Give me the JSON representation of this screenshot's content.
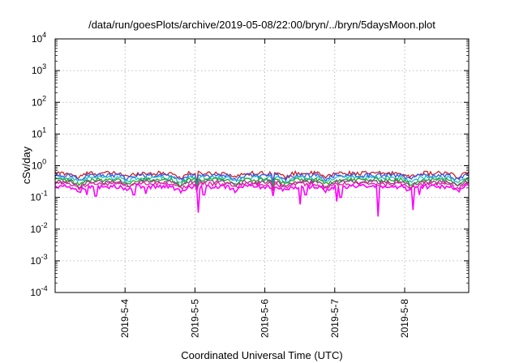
{
  "chart_data": {
    "type": "line",
    "title": "/data/run/goesPlots/archive/2019-05-08/22:00/bryn/../bryn/5daysMoon.plot",
    "xlabel": "Coordinated Universal Time (UTC)",
    "ylabel": "cSv/day",
    "y_scale": "log",
    "ylim": [
      0.0001,
      10000
    ],
    "y_ticks": [
      {
        "base": "10",
        "exp": "-4"
      },
      {
        "base": "10",
        "exp": "-3"
      },
      {
        "base": "10",
        "exp": "-2"
      },
      {
        "base": "10",
        "exp": "-1"
      },
      {
        "base": "10",
        "exp": "0"
      },
      {
        "base": "10",
        "exp": "1"
      },
      {
        "base": "10",
        "exp": "2"
      },
      {
        "base": "10",
        "exp": "3"
      },
      {
        "base": "10",
        "exp": "4"
      }
    ],
    "xlim": [
      "2019-05-03 00:00",
      "2019-05-08 22:00"
    ],
    "x_ticks": [
      "2019-5-4",
      "2019-5-5",
      "2019-5-6",
      "2019-5-7",
      "2019-5-8"
    ],
    "grid": true,
    "legend": "none",
    "series": [
      {
        "color": "#cc2222",
        "base": 0.58,
        "spikes": [
          [
            "2019-05-05 00:30",
            0.3
          ],
          [
            "2019-05-06 03:00",
            0.32
          ]
        ]
      },
      {
        "color": "#3355ee",
        "base": 0.5,
        "spikes": [
          [
            "2019-05-05 00:30",
            0.26
          ],
          [
            "2019-05-06 03:00",
            0.28
          ]
        ]
      },
      {
        "color": "#22bbcc",
        "base": 0.42,
        "spikes": [
          [
            "2019-05-05 00:30",
            0.22
          ],
          [
            "2019-05-06 03:00",
            0.24
          ]
        ]
      },
      {
        "color": "#22aa22",
        "base": 0.36,
        "spikes": [
          [
            "2019-05-05 00:30",
            0.2
          ],
          [
            "2019-05-06 03:00",
            0.21
          ]
        ]
      },
      {
        "color": "#884488",
        "base": 0.31,
        "spikes": [
          [
            "2019-05-05 00:30",
            0.18
          ],
          [
            "2019-05-06 03:00",
            0.19
          ]
        ]
      },
      {
        "color": "#dd2299",
        "base": 0.27,
        "spikes": [
          [
            "2019-05-05 00:30",
            0.15
          ],
          [
            "2019-05-06 03:00",
            0.16
          ]
        ]
      },
      {
        "color": "#ff00ff",
        "base": 0.22,
        "spikes": [
          [
            "2019-05-03 11:00",
            0.12
          ],
          [
            "2019-05-03 14:00",
            0.11
          ],
          [
            "2019-05-04 03:00",
            0.12
          ],
          [
            "2019-05-04 07:00",
            0.13
          ],
          [
            "2019-05-05 01:00",
            0.033
          ],
          [
            "2019-05-05 03:00",
            0.12
          ],
          [
            "2019-05-06 03:00",
            0.11
          ],
          [
            "2019-05-06 12:00",
            0.06
          ],
          [
            "2019-05-06 14:00",
            0.12
          ],
          [
            "2019-05-07 00:30",
            0.075
          ],
          [
            "2019-05-07 02:00",
            0.1
          ],
          [
            "2019-05-07 15:00",
            0.025
          ],
          [
            "2019-05-08 03:00",
            0.04
          ],
          [
            "2019-05-08 05:00",
            0.12
          ]
        ]
      }
    ],
    "dips": [
      [
        "2019-05-03 08:00",
        0.7
      ],
      [
        "2019-05-04 01:00",
        0.75
      ],
      [
        "2019-05-04 19:00",
        0.7
      ],
      [
        "2019-05-05 14:00",
        0.72
      ],
      [
        "2019-05-06 07:00",
        0.72
      ],
      [
        "2019-05-06 21:00",
        0.72
      ],
      [
        "2019-05-08 02:00",
        0.72
      ],
      [
        "2019-05-08 18:00",
        0.72
      ]
    ]
  }
}
